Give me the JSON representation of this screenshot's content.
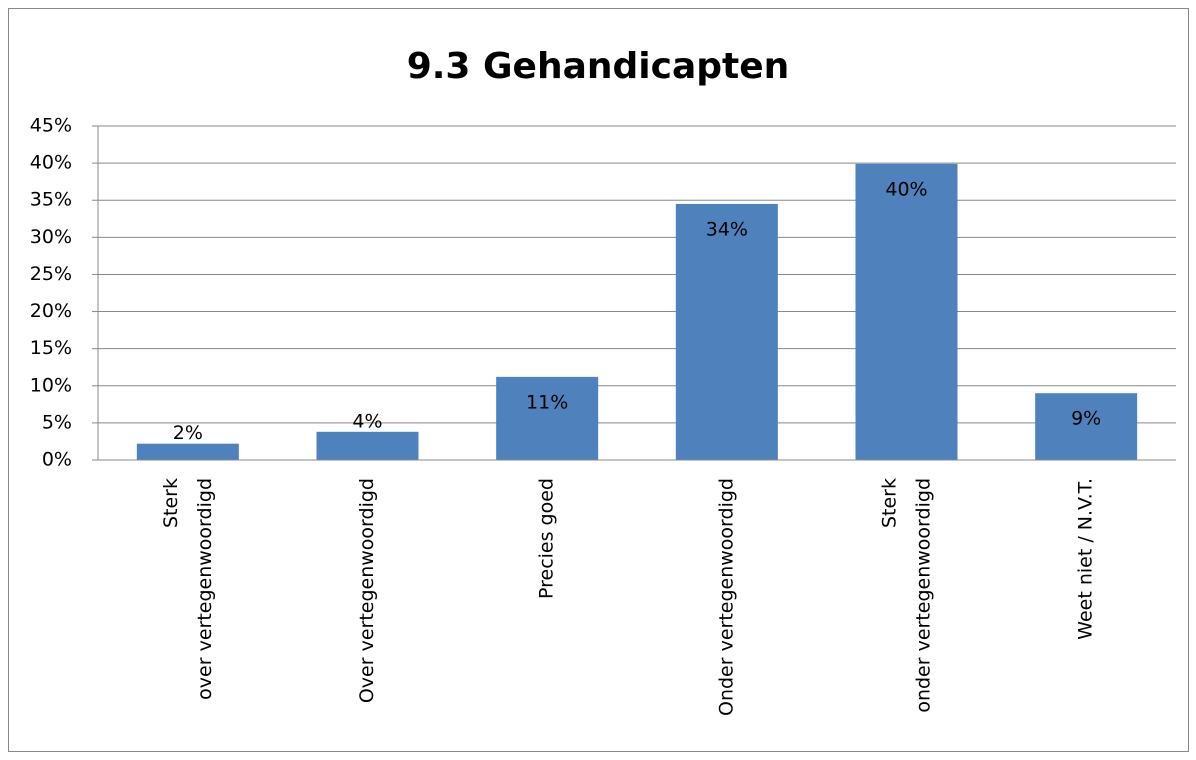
{
  "chart_data": {
    "type": "bar",
    "title": "9.3 Gehandicapten",
    "categories": [
      "Sterk over vertegenwoordigd",
      "Over vertegenwoordigd",
      "Precies goed",
      "Onder vertegenwoordigd",
      "Sterk onder vertegenwoordigd",
      "Weet niet / N.V.T."
    ],
    "values": [
      2.2,
      3.8,
      11.2,
      34.5,
      39.9,
      9.0
    ],
    "value_labels": [
      "2%",
      "4%",
      "11%",
      "34%",
      "40%",
      "9%"
    ],
    "color": "#4f81bd",
    "ylim": [
      0,
      45
    ],
    "yticks": [
      {
        "value": 0,
        "label": "0%"
      },
      {
        "value": 5,
        "label": "5%"
      },
      {
        "value": 10,
        "label": "10%"
      },
      {
        "value": 15,
        "label": "15%"
      },
      {
        "value": 20,
        "label": "20%"
      },
      {
        "value": 25,
        "label": "25%"
      },
      {
        "value": 30,
        "label": "30%"
      },
      {
        "value": 35,
        "label": "35%"
      },
      {
        "value": 40,
        "label": "40%"
      },
      {
        "value": 45,
        "label": "45%"
      }
    ],
    "grid": true
  }
}
